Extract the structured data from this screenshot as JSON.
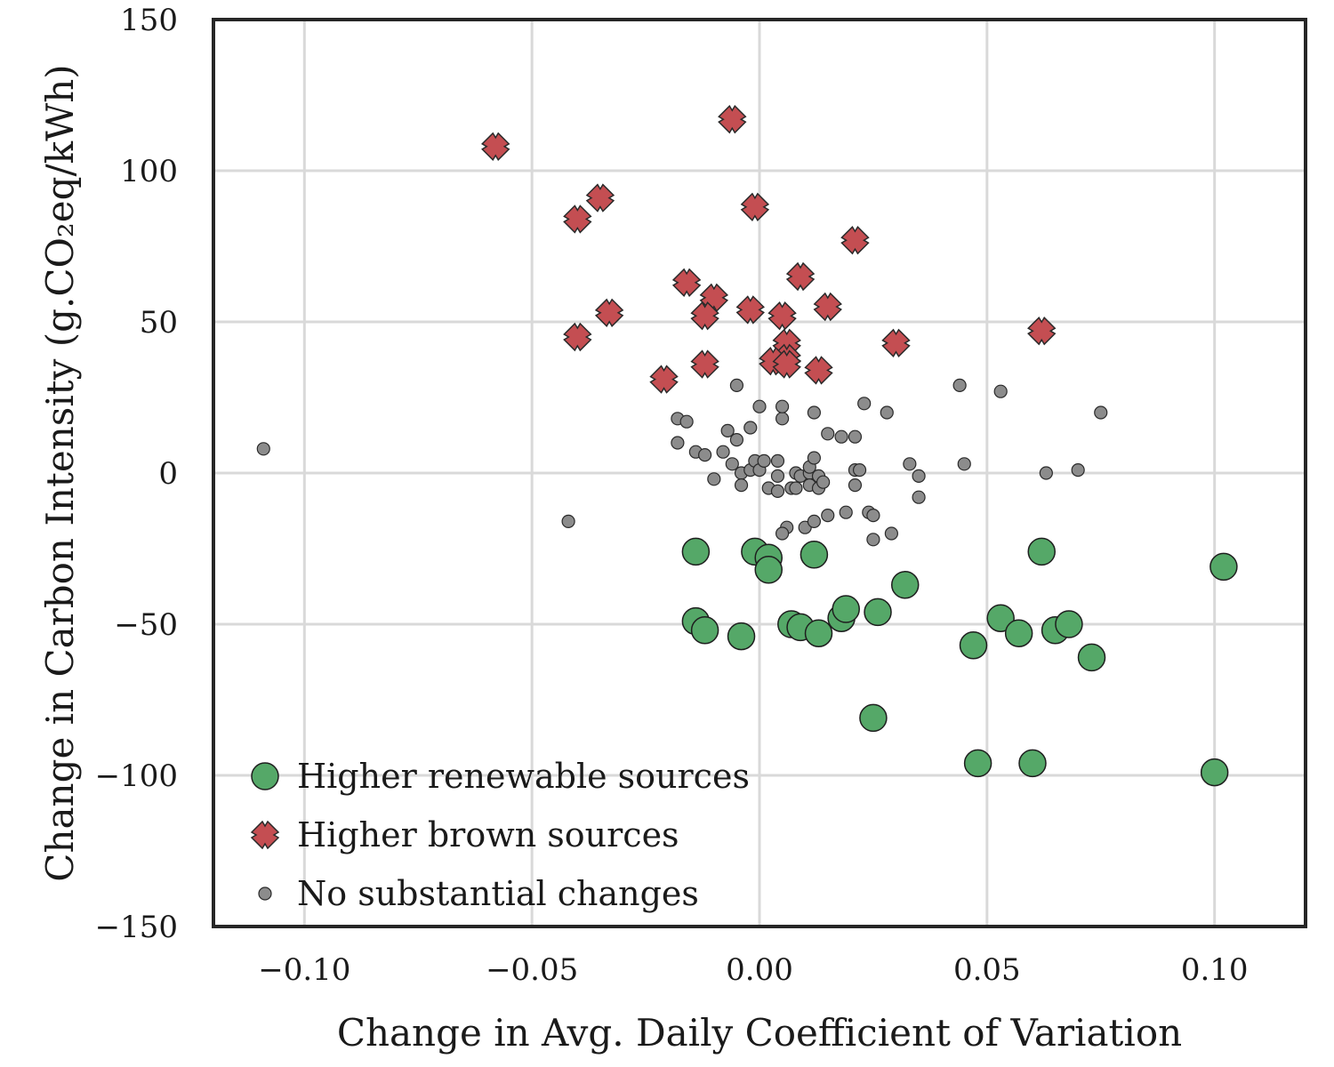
{
  "chart_data": {
    "type": "scatter",
    "xlabel": "Change in Avg. Daily Coefficient of Variation",
    "ylabel": "Change in Carbon Intensity (g.CO₂eq/kWh)",
    "xlim": [
      -0.12,
      0.12
    ],
    "ylim": [
      -150,
      150
    ],
    "x_ticks": [
      -0.1,
      -0.05,
      0.0,
      0.05,
      0.1
    ],
    "x_tick_labels": [
      "−0.10",
      "−0.05",
      "0.00",
      "0.05",
      "0.10"
    ],
    "y_ticks": [
      150,
      100,
      50,
      0,
      -50,
      -100,
      -150
    ],
    "y_tick_labels": [
      "150",
      "100",
      "50",
      "0",
      "−50",
      "−100",
      "−150"
    ],
    "grid": true,
    "legend_position": "bottom-left",
    "series": [
      {
        "name": "Higher renewable sources",
        "color": "#55a868",
        "marker": "circle",
        "points": [
          [
            -0.014,
            -26
          ],
          [
            -0.001,
            -26
          ],
          [
            0.002,
            -28
          ],
          [
            0.012,
            -27
          ],
          [
            0.002,
            -32
          ],
          [
            0.062,
            -26
          ],
          [
            0.102,
            -31
          ],
          [
            -0.014,
            -49
          ],
          [
            -0.012,
            -52
          ],
          [
            -0.004,
            -54
          ],
          [
            0.007,
            -50
          ],
          [
            0.009,
            -51
          ],
          [
            0.013,
            -53
          ],
          [
            0.018,
            -48
          ],
          [
            0.019,
            -45
          ],
          [
            0.026,
            -46
          ],
          [
            0.032,
            -37
          ],
          [
            0.047,
            -57
          ],
          [
            0.053,
            -48
          ],
          [
            0.057,
            -53
          ],
          [
            0.065,
            -52
          ],
          [
            0.068,
            -50
          ],
          [
            0.073,
            -61
          ],
          [
            0.025,
            -81
          ],
          [
            0.048,
            -96
          ],
          [
            0.06,
            -96
          ],
          [
            0.1,
            -99
          ]
        ]
      },
      {
        "name": "Higher brown sources",
        "color": "#c44e52",
        "marker": "x",
        "points": [
          [
            -0.058,
            108
          ],
          [
            -0.006,
            117
          ],
          [
            -0.035,
            91
          ],
          [
            -0.04,
            84
          ],
          [
            -0.001,
            88
          ],
          [
            0.021,
            77
          ],
          [
            0.009,
            65
          ],
          [
            -0.016,
            63
          ],
          [
            -0.01,
            58
          ],
          [
            -0.012,
            52
          ],
          [
            -0.002,
            54
          ],
          [
            0.005,
            52
          ],
          [
            0.015,
            55
          ],
          [
            -0.033,
            53
          ],
          [
            -0.04,
            45
          ],
          [
            -0.012,
            36
          ],
          [
            -0.021,
            31
          ],
          [
            0.006,
            43
          ],
          [
            0.006,
            38
          ],
          [
            0.003,
            37
          ],
          [
            0.006,
            36
          ],
          [
            0.013,
            34
          ],
          [
            0.03,
            43
          ],
          [
            0.062,
            47
          ]
        ]
      },
      {
        "name": "No substantial changes",
        "color": "#8c8c8c",
        "marker": "dot",
        "points": [
          [
            -0.109,
            8
          ],
          [
            -0.042,
            -16
          ],
          [
            -0.018,
            18
          ],
          [
            -0.016,
            17
          ],
          [
            -0.018,
            10
          ],
          [
            -0.014,
            7
          ],
          [
            -0.012,
            6
          ],
          [
            -0.01,
            -2
          ],
          [
            -0.008,
            7
          ],
          [
            -0.006,
            3
          ],
          [
            -0.007,
            14
          ],
          [
            -0.005,
            11
          ],
          [
            -0.004,
            0
          ],
          [
            -0.004,
            -4
          ],
          [
            -0.002,
            1
          ],
          [
            -0.002,
            15
          ],
          [
            -0.001,
            4
          ],
          [
            0.0,
            1
          ],
          [
            0.0,
            22
          ],
          [
            0.001,
            4
          ],
          [
            0.002,
            -5
          ],
          [
            0.004,
            4
          ],
          [
            0.004,
            -1
          ],
          [
            0.004,
            -6
          ],
          [
            0.005,
            18
          ],
          [
            0.005,
            22
          ],
          [
            0.006,
            -18
          ],
          [
            0.007,
            -5
          ],
          [
            0.008,
            -5
          ],
          [
            0.008,
            0
          ],
          [
            0.009,
            -1
          ],
          [
            0.01,
            -18
          ],
          [
            0.011,
            0
          ],
          [
            0.011,
            2
          ],
          [
            0.011,
            -4
          ],
          [
            0.012,
            -16
          ],
          [
            0.012,
            5
          ],
          [
            0.012,
            20
          ],
          [
            0.013,
            -5
          ],
          [
            0.013,
            -1
          ],
          [
            0.014,
            -3
          ],
          [
            0.015,
            -14
          ],
          [
            0.015,
            13
          ],
          [
            0.018,
            12
          ],
          [
            0.019,
            -13
          ],
          [
            0.021,
            12
          ],
          [
            0.021,
            1
          ],
          [
            0.021,
            -4
          ],
          [
            0.022,
            1
          ],
          [
            0.023,
            23
          ],
          [
            0.024,
            -13
          ],
          [
            0.025,
            -14
          ],
          [
            0.025,
            -22
          ],
          [
            0.028,
            20
          ],
          [
            0.029,
            -20
          ],
          [
            0.033,
            3
          ],
          [
            0.035,
            -1
          ],
          [
            0.035,
            -8
          ],
          [
            0.044,
            29
          ],
          [
            0.045,
            3
          ],
          [
            0.053,
            27
          ],
          [
            0.063,
            0
          ],
          [
            0.07,
            1
          ],
          [
            0.075,
            20
          ],
          [
            0.005,
            -20
          ],
          [
            -0.005,
            29
          ]
        ]
      }
    ]
  }
}
